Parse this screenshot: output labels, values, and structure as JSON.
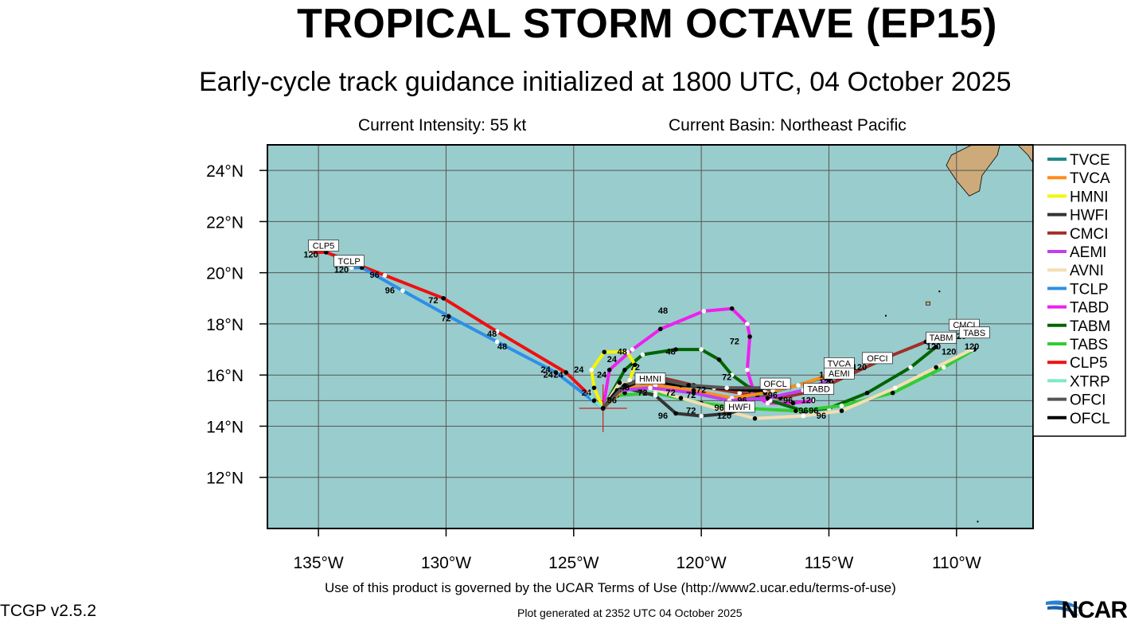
{
  "header": {
    "title": "TROPICAL STORM OCTAVE (EP15)",
    "subtitle": "Early-cycle track guidance initialized at 1800 UTC, 04 October 2025",
    "intensity": "Current Intensity: 55 kt",
    "basin": "Current Basin: Northeast Pacific"
  },
  "map": {
    "lon_range": [
      -137,
      -107
    ],
    "lat_range": [
      10,
      25
    ],
    "ocean_color": "#99CCCC",
    "land_color": "#CCAA7A",
    "lat_ticks": [
      {
        "lat": 24,
        "label": "24°N"
      },
      {
        "lat": 22,
        "label": "22°N"
      },
      {
        "lat": 20,
        "label": "20°N"
      },
      {
        "lat": 18,
        "label": "18°N"
      },
      {
        "lat": 16,
        "label": "16°N"
      },
      {
        "lat": 14,
        "label": "14°N"
      },
      {
        "lat": 12,
        "label": "12°N"
      }
    ],
    "lon_ticks": [
      {
        "lon": -135,
        "label": "135°W"
      },
      {
        "lon": -130,
        "label": "130°W"
      },
      {
        "lon": -125,
        "label": "125°W"
      },
      {
        "lon": -120,
        "label": "120°W"
      },
      {
        "lon": -115,
        "label": "115°W"
      },
      {
        "lon": -110,
        "label": "110°W"
      }
    ],
    "storm_center": {
      "lon": -123.85,
      "lat": 14.7
    }
  },
  "legend": [
    {
      "name": "TVCE",
      "color": "#1F8A8A"
    },
    {
      "name": "TVCA",
      "color": "#FF8C1A"
    },
    {
      "name": "HMNI",
      "color": "#F5F500"
    },
    {
      "name": "HWFI",
      "color": "#333333"
    },
    {
      "name": "CMCI",
      "color": "#A03028"
    },
    {
      "name": "AEMI",
      "color": "#C040F0"
    },
    {
      "name": "AVNI",
      "color": "#F5DEB3"
    },
    {
      "name": "TCLP",
      "color": "#2E8FE8"
    },
    {
      "name": "TABD",
      "color": "#EE20EE"
    },
    {
      "name": "TABM",
      "color": "#006400"
    },
    {
      "name": "TABS",
      "color": "#32CD32"
    },
    {
      "name": "CLP5",
      "color": "#EE1010"
    },
    {
      "name": "XTRP",
      "color": "#7FE8C8"
    },
    {
      "name": "OFCI",
      "color": "#555555"
    },
    {
      "name": "OFCL",
      "color": "#000000"
    }
  ],
  "tracks": [
    {
      "name": "CLP5",
      "color": "#EE1010",
      "points": [
        [
          -123.85,
          14.7
        ],
        [
          -125.3,
          16.1
        ],
        [
          -128,
          17.7
        ],
        [
          -130.1,
          19.0
        ],
        [
          -132.4,
          19.9
        ],
        [
          -134.7,
          20.8
        ],
        [
          -135.3,
          20.8
        ]
      ]
    },
    {
      "name": "TCLP",
      "color": "#2E8FE8",
      "points": [
        [
          -123.85,
          14.7
        ],
        [
          -125.7,
          16.1
        ],
        [
          -128,
          17.3
        ],
        [
          -129.9,
          18.3
        ],
        [
          -131.7,
          19.3
        ],
        [
          -133.3,
          20.2
        ],
        [
          -133.7,
          20.2
        ]
      ]
    },
    {
      "name": "TABD",
      "color": "#EE20EE",
      "points": [
        [
          -123.85,
          14.7
        ],
        [
          -123.6,
          16.2
        ],
        [
          -122.7,
          17.0
        ],
        [
          -121.6,
          17.8
        ],
        [
          -119.9,
          18.5
        ],
        [
          -118.8,
          18.6
        ],
        [
          -118.2,
          18.0
        ],
        [
          -118.1,
          17.5
        ],
        [
          -118.2,
          16.2
        ],
        [
          -117.9,
          15.2
        ],
        [
          -117.4,
          14.9
        ],
        [
          -116.4,
          14.9
        ],
        [
          -115.6,
          15.0
        ]
      ]
    },
    {
      "name": "TABM",
      "color": "#006400",
      "points": [
        [
          -123.85,
          14.7
        ],
        [
          -123.0,
          16.2
        ],
        [
          -122.3,
          16.8
        ],
        [
          -121.0,
          17.0
        ],
        [
          -120.0,
          17.0
        ],
        [
          -119.3,
          16.6
        ],
        [
          -118.8,
          16.0
        ],
        [
          -118.1,
          15.5
        ],
        [
          -117.3,
          15.0
        ],
        [
          -116.0,
          14.6
        ],
        [
          -115.0,
          14.7
        ],
        [
          -113.5,
          15.3
        ],
        [
          -111.8,
          16.3
        ],
        [
          -110.8,
          17.1
        ]
      ]
    },
    {
      "name": "TABS",
      "color": "#32CD32",
      "points": [
        [
          -123.85,
          14.7
        ],
        [
          -123.3,
          15.2
        ],
        [
          -121.8,
          15.3
        ],
        [
          -120.0,
          14.9
        ],
        [
          -118.2,
          14.7
        ],
        [
          -116.3,
          14.6
        ],
        [
          -114.5,
          14.8
        ],
        [
          -112.5,
          15.3
        ],
        [
          -110.5,
          16.3
        ],
        [
          -109.3,
          17.0
        ]
      ]
    },
    {
      "name": "AVNI",
      "color": "#F5DEB3",
      "points": [
        [
          -123.85,
          14.7
        ],
        [
          -123.2,
          15.7
        ],
        [
          -122.0,
          15.5
        ],
        [
          -120.8,
          15.1
        ],
        [
          -119.4,
          14.7
        ],
        [
          -117.9,
          14.3
        ],
        [
          -116.0,
          14.4
        ],
        [
          -114.5,
          14.6
        ],
        [
          -112.4,
          15.5
        ],
        [
          -110.8,
          16.3
        ],
        [
          -109.4,
          17.0
        ]
      ]
    },
    {
      "name": "CMCI",
      "color": "#A03028",
      "points": [
        [
          -123.85,
          14.7
        ],
        [
          -123.0,
          15.6
        ],
        [
          -122.0,
          16.0
        ],
        [
          -120.3,
          15.6
        ],
        [
          -118.5,
          15.3
        ],
        [
          -116.9,
          15.1
        ],
        [
          -115.5,
          15.4
        ],
        [
          -114.2,
          16.0
        ],
        [
          -112.7,
          16.7
        ],
        [
          -111.2,
          17.3
        ],
        [
          -110.3,
          17.5
        ]
      ]
    },
    {
      "name": "HWFI",
      "color": "#333333",
      "points": [
        [
          -123.85,
          14.7
        ],
        [
          -123.0,
          15.5
        ],
        [
          -121.8,
          15.2
        ],
        [
          -121.0,
          14.5
        ],
        [
          -120.0,
          14.4
        ],
        [
          -118.9,
          14.5
        ],
        [
          -118.3,
          14.7
        ]
      ]
    },
    {
      "name": "HMNI",
      "color": "#F5F500",
      "points": [
        [
          -123.85,
          14.7
        ],
        [
          -124.2,
          15.5
        ],
        [
          -124.3,
          16.2
        ],
        [
          -123.8,
          16.9
        ],
        [
          -122.9,
          16.9
        ],
        [
          -122.6,
          16.4
        ],
        [
          -122.8,
          15.8
        ],
        [
          -123.0,
          15.3
        ]
      ]
    },
    {
      "name": "TVCE",
      "color": "#1F8A8A",
      "points": [
        [
          -123.85,
          14.7
        ],
        [
          -123.0,
          15.5
        ],
        [
          -122.0,
          15.6
        ],
        [
          -120.5,
          15.4
        ],
        [
          -119.0,
          15.1
        ],
        [
          -117.8,
          15.2
        ],
        [
          -116.6,
          15.5
        ],
        [
          -115.2,
          15.9
        ],
        [
          -114.4,
          16.2
        ]
      ]
    },
    {
      "name": "TVCA",
      "color": "#FF8C1A",
      "points": [
        [
          -123.85,
          14.7
        ],
        [
          -123.0,
          15.5
        ],
        [
          -121.8,
          15.6
        ],
        [
          -120.3,
          15.4
        ],
        [
          -118.8,
          15.1
        ],
        [
          -117.5,
          15.3
        ],
        [
          -116.2,
          15.6
        ],
        [
          -115.0,
          16.0
        ],
        [
          -114.5,
          16.2
        ]
      ]
    },
    {
      "name": "AEMI",
      "color": "#C040F0",
      "points": [
        [
          -123.85,
          14.7
        ],
        [
          -123.2,
          15.4
        ],
        [
          -122.0,
          15.5
        ],
        [
          -120.3,
          15.3
        ],
        [
          -118.9,
          15.0
        ],
        [
          -117.4,
          15.1
        ],
        [
          -116.0,
          15.4
        ],
        [
          -115.0,
          15.8
        ]
      ]
    },
    {
      "name": "OFCL",
      "color": "#000000",
      "points": [
        [
          -123.85,
          14.7
        ],
        [
          -123.3,
          15.4
        ],
        [
          -122.3,
          15.8
        ],
        [
          -120.8,
          15.6
        ],
        [
          -119.5,
          15.5
        ],
        [
          -118.1,
          15.4
        ],
        [
          -117.5,
          15.4
        ]
      ]
    },
    {
      "name": "OFCI",
      "color": "#555555",
      "points": [
        [
          -123.85,
          14.7
        ],
        [
          -123.0,
          15.6
        ],
        [
          -122.0,
          15.9
        ],
        [
          -120.5,
          15.6
        ],
        [
          -119.0,
          15.5
        ],
        [
          -117.6,
          15.5
        ],
        [
          -117.2,
          15.4
        ]
      ]
    },
    {
      "name": "XTRP",
      "color": "#7FE8C8",
      "points": [
        [
          -123.85,
          14.7
        ],
        [
          -124.2,
          15.0
        ],
        [
          -124.4,
          15.3
        ]
      ]
    }
  ],
  "track_labels": [
    {
      "text": "120",
      "lon": -135.3,
      "lat": 20.6
    },
    {
      "text": "120",
      "lon": -134.1,
      "lat": 20.0
    },
    {
      "text": "96",
      "lon": -132.8,
      "lat": 19.8
    },
    {
      "text": "96",
      "lon": -132.2,
      "lat": 19.2
    },
    {
      "text": "72",
      "lon": -130.5,
      "lat": 18.8
    },
    {
      "text": "72",
      "lon": -130.0,
      "lat": 18.1
    },
    {
      "text": "48",
      "lon": -128.2,
      "lat": 17.5
    },
    {
      "text": "48",
      "lon": -127.8,
      "lat": 17.0
    },
    {
      "text": "24",
      "lon": -126.1,
      "lat": 16.1
    },
    {
      "text": "24",
      "lon": -126.0,
      "lat": 15.9
    },
    {
      "text": "24",
      "lon": -125.6,
      "lat": 15.9
    },
    {
      "text": "24",
      "lon": -124.8,
      "lat": 16.1
    },
    {
      "text": "24",
      "lon": -123.9,
      "lat": 15.9
    },
    {
      "text": "24",
      "lon": -123.5,
      "lat": 16.5
    },
    {
      "text": "24",
      "lon": -124.5,
      "lat": 15.2
    },
    {
      "text": "48",
      "lon": -123.1,
      "lat": 16.8
    },
    {
      "text": "48",
      "lon": -123.0,
      "lat": 15.4
    },
    {
      "text": "96",
      "lon": -123.5,
      "lat": 14.9
    },
    {
      "text": "72",
      "lon": -122.6,
      "lat": 16.2
    },
    {
      "text": "72",
      "lon": -122.3,
      "lat": 15.2
    },
    {
      "text": "48",
      "lon": -121.5,
      "lat": 18.4
    },
    {
      "text": "48",
      "lon": -121.2,
      "lat": 16.8
    },
    {
      "text": "72",
      "lon": -121.2,
      "lat": 15.2
    },
    {
      "text": "72",
      "lon": -120.4,
      "lat": 15.1
    },
    {
      "text": "72",
      "lon": -120.0,
      "lat": 15.3
    },
    {
      "text": "72",
      "lon": -120.4,
      "lat": 14.5
    },
    {
      "text": "96",
      "lon": -121.5,
      "lat": 14.3
    },
    {
      "text": "72",
      "lon": -118.7,
      "lat": 17.2
    },
    {
      "text": "72",
      "lon": -119.0,
      "lat": 15.8
    },
    {
      "text": "96",
      "lon": -119.3,
      "lat": 14.6
    },
    {
      "text": "96",
      "lon": -118.4,
      "lat": 14.9
    },
    {
      "text": "120",
      "lon": -119.1,
      "lat": 14.3
    },
    {
      "text": "96",
      "lon": -117.2,
      "lat": 15.1
    },
    {
      "text": "96",
      "lon": -116.6,
      "lat": 14.9
    },
    {
      "text": "120",
      "lon": -115.8,
      "lat": 14.9
    },
    {
      "text": "96",
      "lon": -116.0,
      "lat": 14.5
    },
    {
      "text": "96",
      "lon": -115.3,
      "lat": 14.3
    },
    {
      "text": "96",
      "lon": -115.6,
      "lat": 14.5
    },
    {
      "text": "120",
      "lon": -115.1,
      "lat": 15.9
    },
    {
      "text": "120",
      "lon": -115.1,
      "lat": 15.6
    },
    {
      "text": "120",
      "lon": -113.8,
      "lat": 16.2
    },
    {
      "text": "120",
      "lon": -110.9,
      "lat": 17.0
    },
    {
      "text": "120",
      "lon": -110.3,
      "lat": 16.8
    },
    {
      "text": "120",
      "lon": -109.9,
      "lat": 17.4
    },
    {
      "text": "120",
      "lon": -109.4,
      "lat": 17.0
    }
  ],
  "model_tags": [
    {
      "text": "CLP5",
      "lon": -134.8,
      "lat": 21.0
    },
    {
      "text": "TCLP",
      "lon": -133.8,
      "lat": 20.4
    },
    {
      "text": "OFCL",
      "lon": -117.1,
      "lat": 15.6
    },
    {
      "text": "HWFI",
      "lon": -118.5,
      "lat": 14.7
    },
    {
      "text": "TABD",
      "lon": -115.4,
      "lat": 15.4
    },
    {
      "text": "TVCA",
      "lon": -114.6,
      "lat": 16.4
    },
    {
      "text": "AEMI",
      "lon": -114.6,
      "lat": 16.0
    },
    {
      "text": "OFCI",
      "lon": -113.1,
      "lat": 16.6
    },
    {
      "text": "CMCI",
      "lon": -109.7,
      "lat": 17.9
    },
    {
      "text": "TABM",
      "lon": -110.6,
      "lat": 17.4
    },
    {
      "text": "TABS",
      "lon": -109.3,
      "lat": 17.6
    },
    {
      "text": "HMNI",
      "lon": -122.0,
      "lat": 15.8
    }
  ],
  "footer": {
    "terms": "Use of this product is governed by the UCAR Terms of Use (http://www2.ucar.edu/terms-of-use)",
    "version": "TCGP v2.5.2",
    "generated": "Plot generated at 2352 UTC   04 October 2025",
    "logo": "NCAR"
  }
}
